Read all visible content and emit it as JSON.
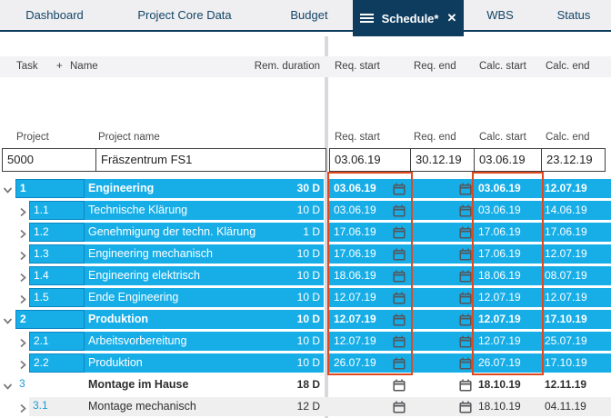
{
  "tabs": [
    {
      "label": "Dashboard",
      "active": false
    },
    {
      "label": "Project Core Data",
      "active": false
    },
    {
      "label": "Budget",
      "active": false
    },
    {
      "label": "Schedule*",
      "active": true
    },
    {
      "label": "WBS",
      "active": false
    },
    {
      "label": "Status",
      "active": false
    }
  ],
  "columns": {
    "task": "Task",
    "add": "+",
    "name": "Name",
    "rem_duration": "Rem. duration",
    "req_start": "Req. start",
    "req_end": "Req. end",
    "calc_start": "Calc. start",
    "calc_end": "Calc. end"
  },
  "project_header": {
    "project": "Project",
    "project_name": "Project name",
    "req_start": "Req. start",
    "req_end": "Req. end",
    "calc_start": "Calc. start",
    "calc_end": "Calc. end"
  },
  "project": {
    "id": "5000",
    "name": "Fräszentrum FS1",
    "req_start": "03.06.19",
    "req_end": "30.12.19",
    "calc_start": "03.06.19",
    "calc_end": "23.12.19"
  },
  "tasks": [
    {
      "num": "1",
      "name": "Engineering",
      "duration": "30 D",
      "req_start": "03.06.19",
      "req_end": "",
      "calc_start": "03.06.19",
      "calc_end": "12.07.19",
      "level": 1,
      "highlighted": true,
      "bold": true,
      "gray_background": false
    },
    {
      "num": "1.1",
      "name": "Technische Klärung",
      "duration": "10 D",
      "req_start": "03.06.19",
      "req_end": "",
      "calc_start": "03.06.19",
      "calc_end": "14.06.19",
      "level": 2,
      "highlighted": true,
      "bold": false,
      "gray_background": false
    },
    {
      "num": "1.2",
      "name": "Genehmigung der techn. Klärung",
      "duration": "1 D",
      "req_start": "17.06.19",
      "req_end": "",
      "calc_start": "17.06.19",
      "calc_end": "17.06.19",
      "level": 2,
      "highlighted": true,
      "bold": false,
      "gray_background": false
    },
    {
      "num": "1.3",
      "name": "Engineering mechanisch",
      "duration": "10 D",
      "req_start": "17.06.19",
      "req_end": "",
      "calc_start": "17.06.19",
      "calc_end": "12.07.19",
      "level": 2,
      "highlighted": true,
      "bold": false,
      "gray_background": false
    },
    {
      "num": "1.4",
      "name": "Engineering elektrisch",
      "duration": "10 D",
      "req_start": "18.06.19",
      "req_end": "",
      "calc_start": "18.06.19",
      "calc_end": "08.07.19",
      "level": 2,
      "highlighted": true,
      "bold": false,
      "gray_background": false
    },
    {
      "num": "1.5",
      "name": "Ende Engineering",
      "duration": "10 D",
      "req_start": "12.07.19",
      "req_end": "",
      "calc_start": "12.07.19",
      "calc_end": "12.07.19",
      "level": 2,
      "highlighted": true,
      "bold": false,
      "gray_background": false
    },
    {
      "num": "2",
      "name": "Produktion",
      "duration": "10 D",
      "req_start": "12.07.19",
      "req_end": "",
      "calc_start": "12.07.19",
      "calc_end": "17.10.19",
      "level": 1,
      "highlighted": true,
      "bold": true,
      "gray_background": false
    },
    {
      "num": "2.1",
      "name": "Arbeitsvorbereitung",
      "duration": "10 D",
      "req_start": "12.07.19",
      "req_end": "",
      "calc_start": "12.07.19",
      "calc_end": "25.07.19",
      "level": 2,
      "highlighted": true,
      "bold": false,
      "gray_background": false
    },
    {
      "num": "2.2",
      "name": "Produktion",
      "duration": "10 D",
      "req_start": "26.07.19",
      "req_end": "",
      "calc_start": "26.07.19",
      "calc_end": "17.10.19",
      "level": 2,
      "highlighted": true,
      "bold": false,
      "gray_background": false
    },
    {
      "num": "3",
      "name": "Montage im Hause",
      "duration": "18 D",
      "req_start": "",
      "req_end": "",
      "calc_start": "18.10.19",
      "calc_end": "12.11.19",
      "level": 1,
      "highlighted": false,
      "bold": true,
      "gray_background": false
    },
    {
      "num": "3.1",
      "name": "Montage mechanisch",
      "duration": "12 D",
      "req_start": "",
      "req_end": "",
      "calc_start": "18.10.19",
      "calc_end": "04.11.19",
      "level": 2,
      "highlighted": false,
      "bold": false,
      "gray_background": true
    }
  ],
  "icons": {
    "close": "✕"
  },
  "colors": {
    "row_highlight": "#17AEE8",
    "row_highlight_border": "#0C86C2",
    "tab_active_bg": "#0D3C5F",
    "validation_box_border": "#E0491E",
    "row_alt_bg": "#EFEFEF",
    "divider": "#DAD7DD"
  }
}
